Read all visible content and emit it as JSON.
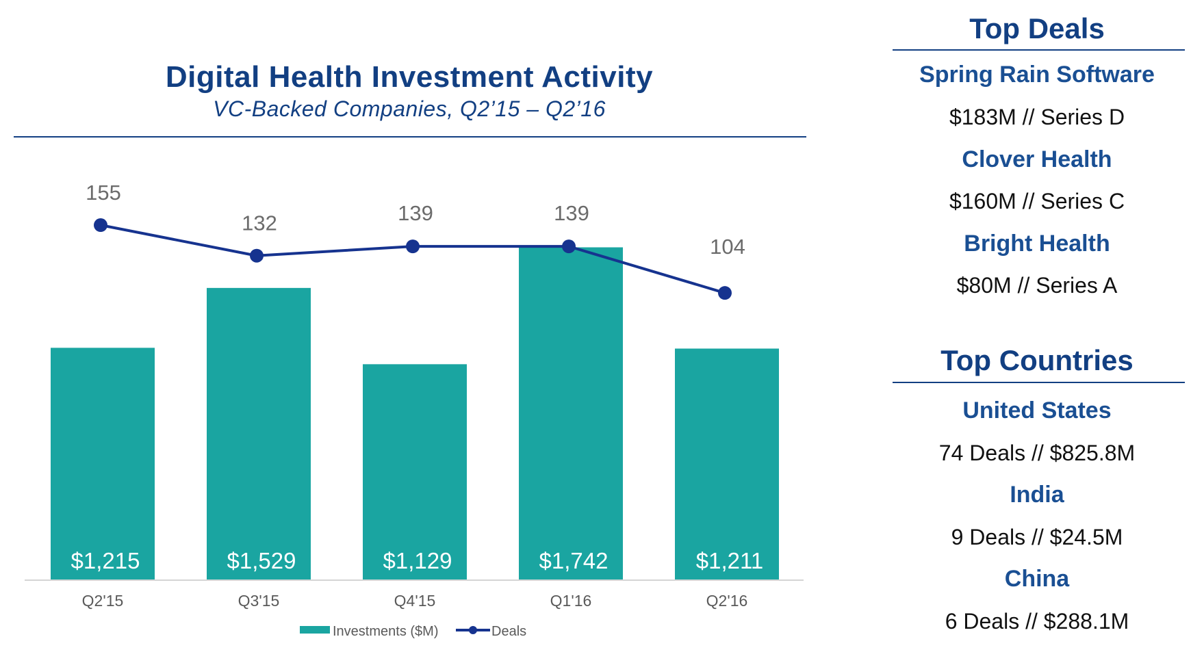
{
  "chart_data": {
    "type": "bar",
    "title": "Digital Health Investment Activity",
    "subtitle": "VC-Backed Companies, Q2’15 – Q2’16",
    "categories": [
      "Q2'15",
      "Q3'15",
      "Q4'15",
      "Q1'16",
      "Q2'16"
    ],
    "series": [
      {
        "name": "Investments ($M)",
        "kind": "bar",
        "color": "#1aa5a1",
        "values": [
          1215,
          1529,
          1129,
          1742,
          1211
        ],
        "labels": [
          "$1,215",
          "$1,529",
          "$1,129",
          "$1,742",
          "$1,211"
        ]
      },
      {
        "name": "Deals",
        "kind": "line",
        "color": "#16338f",
        "values": [
          155,
          132,
          139,
          139,
          104
        ],
        "labels": [
          "155",
          "132",
          "139",
          "139",
          "104"
        ]
      }
    ],
    "legend_position": "bottom",
    "grid": false
  },
  "sidebar": {
    "top_deals": {
      "heading": "Top Deals",
      "items": [
        {
          "name": "Spring Rain Software",
          "detail": "$183M // Series D"
        },
        {
          "name": "Clover Health",
          "detail": "$160M // Series C"
        },
        {
          "name": "Bright Health",
          "detail": "$80M // Series A"
        }
      ]
    },
    "top_countries": {
      "heading": "Top Countries",
      "items": [
        {
          "name": "United States",
          "detail": "74 Deals // $825.8M"
        },
        {
          "name": "India",
          "detail": "9 Deals // $24.5M"
        },
        {
          "name": "China",
          "detail": "6 Deals // $288.1M"
        }
      ]
    }
  }
}
